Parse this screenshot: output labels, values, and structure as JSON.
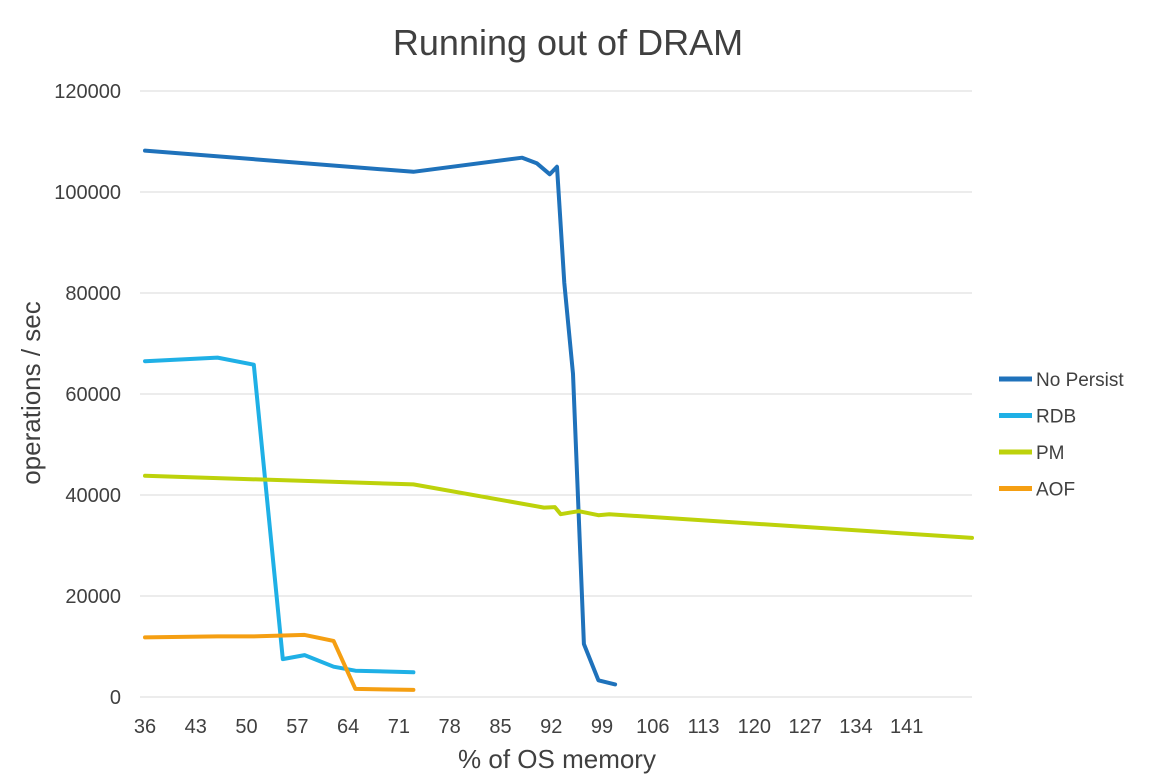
{
  "chart_data": {
    "type": "line",
    "title": "Running out of DRAM",
    "xlabel": "% of OS memory",
    "ylabel": "operations / sec",
    "xlim": [
      36,
      150
    ],
    "ylim": [
      0,
      120000
    ],
    "x_ticks": [
      36,
      43,
      50,
      57,
      64,
      71,
      78,
      85,
      92,
      99,
      106,
      113,
      120,
      127,
      134,
      141
    ],
    "y_ticks": [
      0,
      20000,
      40000,
      60000,
      80000,
      100000,
      120000
    ],
    "grid": true,
    "legend_position": "right",
    "series": [
      {
        "name": "No Persist",
        "color": "#1f72bb",
        "x": [
          36,
          73,
          88,
          90,
          91.8,
          92.8,
          93.8,
          95,
          96.5,
          98.5,
          100.8
        ],
        "y": [
          108200,
          104000,
          106800,
          105700,
          103500,
          105000,
          82000,
          64000,
          10500,
          3300,
          2500
        ]
      },
      {
        "name": "RDB",
        "color": "#1fb0e6",
        "x": [
          36,
          46,
          51,
          55,
          58,
          62,
          65,
          73
        ],
        "y": [
          66500,
          67200,
          65800,
          7500,
          8300,
          6000,
          5200,
          4900
        ]
      },
      {
        "name": "PM",
        "color": "#bdd20b",
        "x": [
          36,
          73,
          91,
          92.5,
          93.3,
          94.5,
          95.8,
          98.5,
          100,
          150
        ],
        "y": [
          43800,
          42100,
          37500,
          37600,
          36200,
          36500,
          36800,
          36000,
          36200,
          31500
        ]
      },
      {
        "name": "AOF",
        "color": "#f59f12",
        "x": [
          36,
          46,
          51,
          58,
          62,
          65,
          73
        ],
        "y": [
          11800,
          12000,
          12000,
          12300,
          11100,
          1600,
          1400
        ]
      }
    ]
  }
}
